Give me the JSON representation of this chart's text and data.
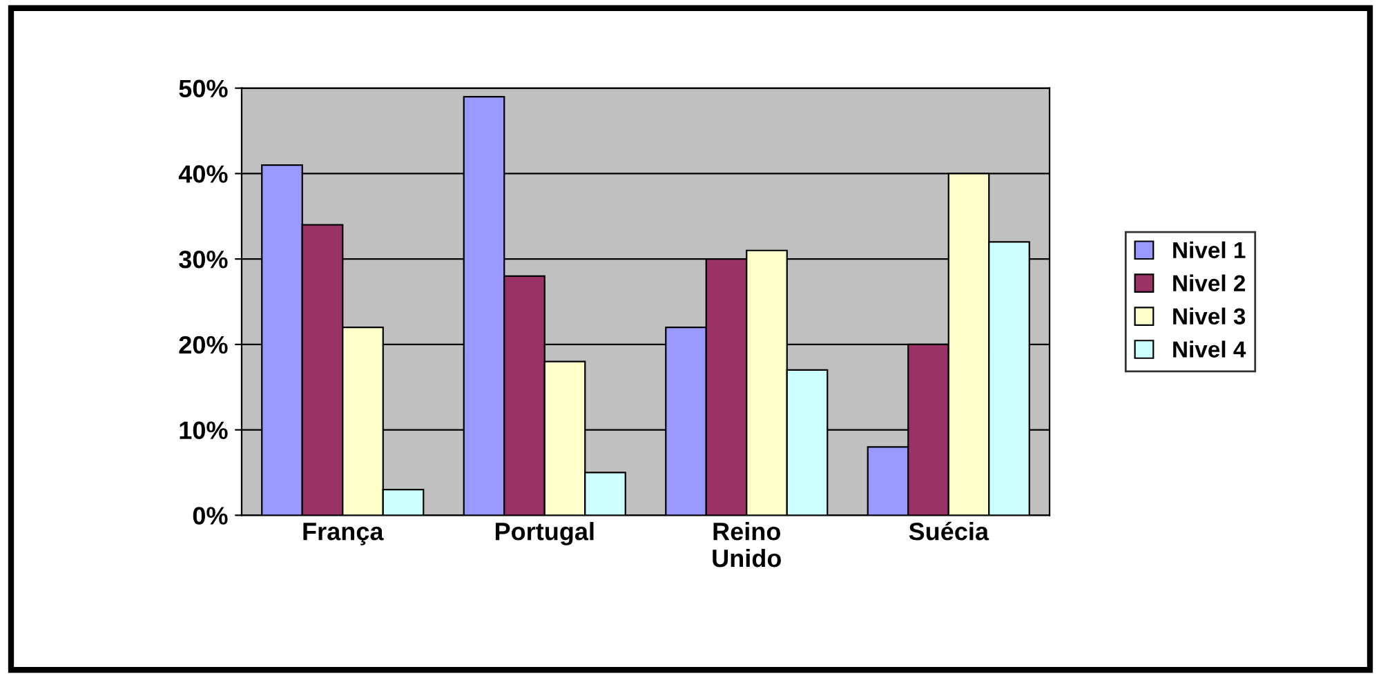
{
  "chart_data": {
    "type": "bar",
    "categories": [
      "França",
      "Portugal",
      "Reino\nUnido",
      "Suécia"
    ],
    "series": [
      {
        "name": "Nivel 1",
        "color": "#9999ff",
        "values": [
          41,
          49,
          22,
          8
        ]
      },
      {
        "name": "Nivel 2",
        "color": "#993366",
        "values": [
          34,
          28,
          30,
          20
        ]
      },
      {
        "name": "Nivel 3",
        "color": "#ffffcc",
        "values": [
          22,
          18,
          31,
          40
        ]
      },
      {
        "name": "Nivel 4",
        "color": "#ccffff",
        "values": [
          3,
          5,
          17,
          32
        ]
      }
    ],
    "ylim": [
      0,
      50
    ],
    "yticks": [
      {
        "value": 0,
        "label": "0%"
      },
      {
        "value": 10,
        "label": "10%"
      },
      {
        "value": 20,
        "label": "20%"
      },
      {
        "value": 30,
        "label": "30%"
      },
      {
        "value": 40,
        "label": "40%"
      },
      {
        "value": 50,
        "label": "50%"
      }
    ],
    "grid": "y",
    "legend": "right"
  }
}
